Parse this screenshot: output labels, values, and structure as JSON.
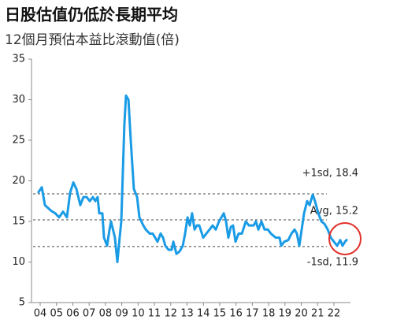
{
  "chart_data": {
    "type": "line",
    "title": "日股估值仍低於長期平均",
    "subtitle": "12個月預估本益比滾動值(倍)",
    "x": [
      3.86,
      4.1,
      4.29,
      4.68,
      4.92,
      5.16,
      5.4,
      5.64,
      5.83,
      6.03,
      6.22,
      6.46,
      6.65,
      6.85,
      7.04,
      7.23,
      7.38,
      7.52,
      7.62,
      7.81,
      7.91,
      8.1,
      8.25,
      8.34,
      8.58,
      8.73,
      8.87,
      8.97,
      9.16,
      9.26,
      9.41,
      9.55,
      9.74,
      9.94,
      10.08,
      10.32,
      10.47,
      10.71,
      10.9,
      11.19,
      11.38,
      11.53,
      11.67,
      11.87,
      12.06,
      12.16,
      12.35,
      12.54,
      12.74,
      12.88,
      13.03,
      13.17,
      13.31,
      13.46,
      13.6,
      13.75,
      13.99,
      14.18,
      14.38,
      14.57,
      14.76,
      14.96,
      15.25,
      15.39,
      15.53,
      15.68,
      15.82,
      15.97,
      16.16,
      16.36,
      16.6,
      16.79,
      17.08,
      17.22,
      17.37,
      17.56,
      17.75,
      17.95,
      18.14,
      18.43,
      18.67,
      18.77,
      18.96,
      19.2,
      19.4,
      19.59,
      19.73,
      19.88,
      20.17,
      20.36,
      20.51,
      20.7,
      20.84,
      21.04,
      21.23,
      21.42,
      21.62,
      21.81,
      22.0,
      22.2,
      22.39,
      22.53,
      22.68,
      22.82
    ],
    "series": [
      {
        "color": "#1a9be6",
        "values": [
          18.5,
          19.2,
          17,
          16.3,
          16,
          15.5,
          16.2,
          15.5,
          18.5,
          19.8,
          19,
          17,
          18,
          18,
          17.5,
          18,
          17.5,
          18,
          16,
          16,
          13,
          12,
          14,
          15,
          13,
          10,
          13,
          15,
          27,
          30.5,
          30,
          25,
          19,
          18,
          15.5,
          14.5,
          14,
          13.5,
          13.5,
          12.5,
          13.5,
          13,
          12,
          11.5,
          11.5,
          12.5,
          11,
          11.3,
          12,
          13.5,
          15.5,
          14.5,
          16,
          14,
          14.5,
          14.5,
          13,
          13.5,
          14,
          14.5,
          14,
          15,
          16,
          15,
          13,
          14.3,
          14.5,
          12.5,
          13.5,
          13.5,
          15,
          14.5,
          14.5,
          15,
          14,
          15,
          14,
          14,
          13.5,
          13,
          13,
          12,
          12.5,
          12.7,
          13.5,
          14,
          13.5,
          12,
          16,
          17.5,
          17,
          18.3,
          17.5,
          16,
          15,
          14.7,
          14,
          13,
          12.5,
          12,
          12.7,
          12,
          12.5,
          12.8
        ]
      }
    ],
    "reference_lines": [
      {
        "value": 18.4,
        "label": "+1sd, 18.4"
      },
      {
        "value": 15.2,
        "label": "Avg, 15.2"
      },
      {
        "value": 11.9,
        "label": "-1sd, 11.9"
      }
    ],
    "xlim": [
      3.7,
      23.0
    ],
    "xticks": [
      {
        "value": 4,
        "label": "04"
      },
      {
        "value": 5,
        "label": "05"
      },
      {
        "value": 6,
        "label": "06"
      },
      {
        "value": 7,
        "label": "07"
      },
      {
        "value": 8,
        "label": "08"
      },
      {
        "value": 9,
        "label": "09"
      },
      {
        "value": 10,
        "label": "10"
      },
      {
        "value": 11,
        "label": "11"
      },
      {
        "value": 12,
        "label": "12"
      },
      {
        "value": 13,
        "label": "13"
      },
      {
        "value": 14,
        "label": "14"
      },
      {
        "value": 15,
        "label": "15"
      },
      {
        "value": 16,
        "label": "16"
      },
      {
        "value": 17,
        "label": "17"
      },
      {
        "value": 18,
        "label": "18"
      },
      {
        "value": 19,
        "label": "19"
      },
      {
        "value": 20,
        "label": "20"
      },
      {
        "value": 21,
        "label": "21"
      },
      {
        "value": 22,
        "label": "22"
      }
    ],
    "ylim": [
      5,
      35
    ],
    "yticks": [
      5,
      10,
      15,
      20,
      25,
      30,
      35
    ]
  }
}
